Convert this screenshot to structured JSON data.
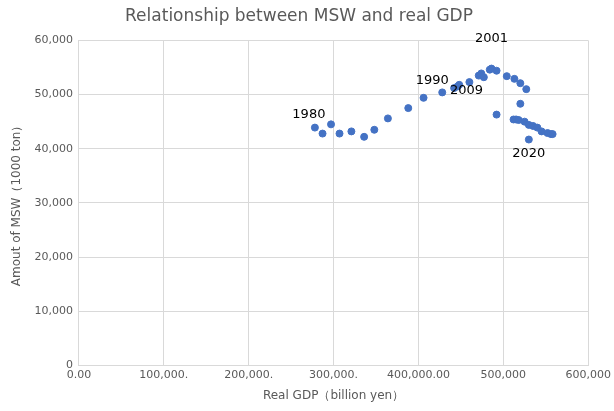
{
  "chart_data": {
    "type": "scatter",
    "title": "Relationship between MSW and real GDP",
    "x_label": "Real GDP（billion yen）",
    "y_label": "Amout of MSW（1000 ton）",
    "color": "#4472c4",
    "marker": "circle",
    "grid": true,
    "x": [
      278000,
      287000,
      297000,
      307000,
      321000,
      336000,
      348000,
      364000,
      388000,
      406000,
      428000,
      442000,
      446000,
      448000,
      460000,
      471000,
      474000,
      477000,
      484000,
      486000,
      492000,
      504000,
      513000,
      520000,
      527000,
      520000,
      515000,
      492000,
      512000,
      518000,
      525000,
      530000,
      535000,
      540000,
      545000,
      552000,
      556000,
      558000,
      530000
    ],
    "values": [
      43900,
      42800,
      44500,
      42800,
      43200,
      42200,
      43500,
      45600,
      47500,
      49400,
      50400,
      51200,
      51500,
      51800,
      52300,
      53500,
      53900,
      53200,
      54600,
      54800,
      54400,
      53400,
      52900,
      52100,
      51000,
      48300,
      45400,
      46300,
      45400,
      45300,
      45000,
      44400,
      44200,
      43900,
      43200,
      42900,
      42700,
      42700,
      41700
    ],
    "annotations": [
      {
        "text": "1980",
        "x": 278000,
        "y": 43900
      },
      {
        "text": "1990",
        "x": 428000,
        "y": 50400
      },
      {
        "text": "2001",
        "x": 486000,
        "y": 54800
      },
      {
        "text": "2009",
        "x": 492000,
        "y": 46300
      },
      {
        "text": "2020",
        "x": 530000,
        "y": 41700
      }
    ],
    "xlim": [
      0,
      600000
    ],
    "xticks": [
      {
        "value": 0,
        "label": "0.00"
      },
      {
        "value": 100000,
        "label": "100,000."
      },
      {
        "value": 200000,
        "label": "200,000."
      },
      {
        "value": 300000,
        "label": "300,000."
      },
      {
        "value": 400000,
        "label": "400,000.00"
      },
      {
        "value": 500000,
        "label": "500,000"
      },
      {
        "value": 600000,
        "label": "600,000"
      }
    ],
    "ylim": [
      0,
      60000
    ],
    "yticks": [
      0,
      {
        "value": 10000,
        "label": "10,000"
      },
      {
        "value": 20000,
        "label": "20,000"
      },
      {
        "value": 30000,
        "label": "30,000"
      },
      {
        "value": 40000,
        "label": "40,000"
      },
      {
        "value": 50000,
        "label": "50,000"
      },
      {
        "value": 60000,
        "label": "60,000"
      }
    ]
  }
}
